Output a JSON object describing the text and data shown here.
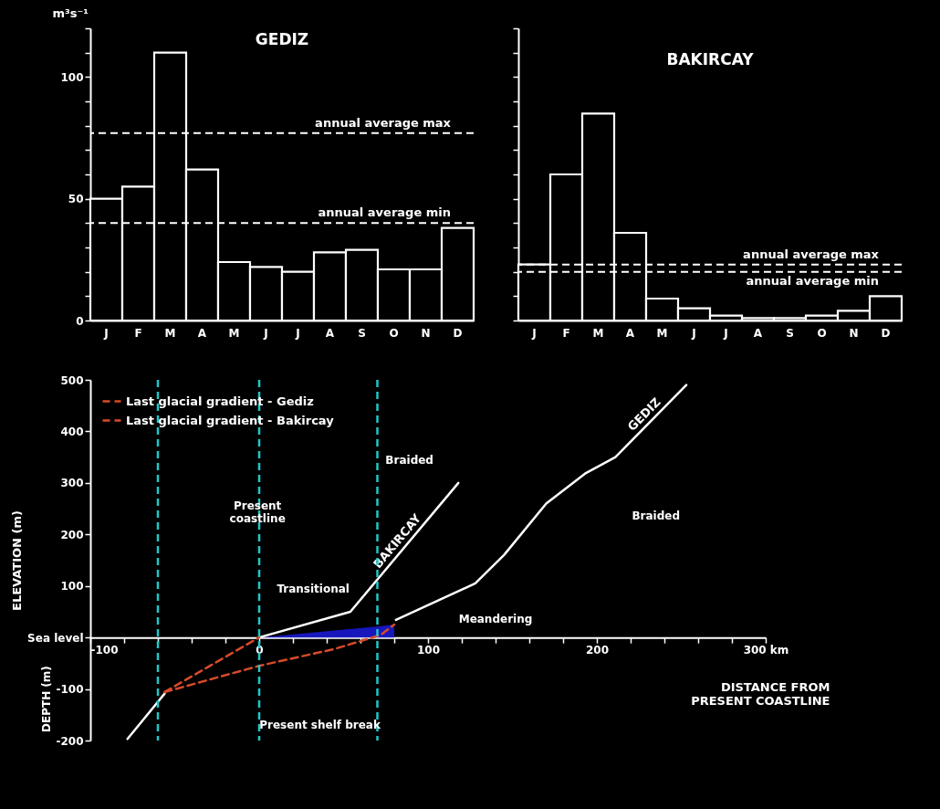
{
  "chart_data": [
    {
      "type": "bar",
      "title": "GEDIZ",
      "ylabel": "m³s⁻¹",
      "color": "#ffffff",
      "categories": [
        "J",
        "F",
        "M",
        "A",
        "M",
        "J",
        "J",
        "A",
        "S",
        "O",
        "N",
        "D"
      ],
      "values": [
        50,
        55,
        110,
        62,
        24,
        22,
        20,
        28,
        29,
        21,
        21,
        38
      ],
      "ylim": [
        0,
        120
      ],
      "yticks": [
        0,
        {
          "value": 10,
          "label": null
        },
        {
          "value": 20,
          "label": null
        },
        {
          "value": 30,
          "label": null
        },
        {
          "value": 40,
          "label": null
        },
        50,
        {
          "value": 60,
          "label": null
        },
        {
          "value": 70,
          "label": null
        },
        {
          "value": 80,
          "label": null
        },
        {
          "value": 90,
          "label": null
        },
        100,
        {
          "value": 110,
          "label": null
        },
        {
          "value": 120,
          "label": null
        }
      ],
      "ref_lines": [
        {
          "axis": "y",
          "value": 77,
          "label": "annual average max",
          "color": "#ffffff",
          "line_style": "dashed"
        },
        {
          "axis": "y",
          "value": 40,
          "label": "annual average min",
          "color": "#ffffff",
          "line_style": "dashed"
        }
      ]
    },
    {
      "type": "bar",
      "title": "BAKIRCAY",
      "color": "#ffffff",
      "tick_labels": "x",
      "categories": [
        "J",
        "F",
        "M",
        "A",
        "M",
        "J",
        "J",
        "A",
        "S",
        "O",
        "N",
        "D"
      ],
      "values": [
        23,
        60,
        85,
        36,
        9,
        5,
        2,
        1,
        1,
        2,
        4,
        10
      ],
      "ylim": [
        0,
        120
      ],
      "yticks": [
        {
          "value": 0,
          "label": null
        },
        {
          "value": 10,
          "label": null
        },
        {
          "value": 20,
          "label": null
        },
        {
          "value": 30,
          "label": null
        },
        {
          "value": 40,
          "label": null
        },
        {
          "value": 50,
          "label": null
        },
        {
          "value": 60,
          "label": null
        },
        {
          "value": 70,
          "label": null
        },
        {
          "value": 80,
          "label": null
        },
        {
          "value": 90,
          "label": null
        },
        {
          "value": 100,
          "label": null
        },
        {
          "value": 110,
          "label": null
        },
        {
          "value": 120,
          "label": null
        }
      ],
      "ref_lines": [
        {
          "axis": "y",
          "value": 23,
          "label": "annual average max",
          "color": "#ffffff",
          "line_style": "dashed"
        },
        {
          "axis": "y",
          "value": 20,
          "label": "annual average min",
          "color": "#ffffff",
          "line_style": "dashed"
        }
      ]
    },
    {
      "type": "line",
      "xlabel": "DISTANCE FROM PRESENT COASTLINE",
      "ylabel": "ELEVATION (m)",
      "legend": "top left",
      "xlim": [
        -100,
        300
      ],
      "xticks": [
        -100,
        {
          "value": -80,
          "label": null
        },
        {
          "value": -60,
          "label": null
        },
        {
          "value": -40,
          "label": null
        },
        {
          "value": -20,
          "label": null
        },
        0,
        {
          "value": 20,
          "label": null
        },
        {
          "value": 40,
          "label": null
        },
        {
          "value": 60,
          "label": null
        },
        {
          "value": 80,
          "label": null
        },
        100,
        {
          "value": 120,
          "label": null
        },
        {
          "value": 140,
          "label": null
        },
        {
          "value": 160,
          "label": null
        },
        {
          "value": 180,
          "label": null
        },
        200,
        {
          "value": 220,
          "label": null
        },
        {
          "value": 240,
          "label": null
        },
        {
          "value": 260,
          "label": null
        },
        {
          "value": 280,
          "label": null
        },
        {
          "value": 300,
          "label": "300 km"
        }
      ],
      "ylim": [
        -200,
        500
      ],
      "yticks": [
        500,
        400,
        300,
        200,
        100,
        {
          "value": 0,
          "label": "Sea level"
        },
        -100,
        -200
      ],
      "series": [
        {
          "type": "area",
          "color": "#1a1ad0",
          "x": [
            0,
            72,
            80
          ],
          "values": [
            0,
            22,
            25
          ]
        },
        {
          "type": "line",
          "color": "#ffffff",
          "x": [
            -78,
            -56
          ],
          "values": [
            -197,
            -109
          ]
        },
        {
          "type": "line",
          "name": "BAKIRCAY",
          "color": "#ffffff",
          "x": [
            0,
            54,
            118
          ],
          "values": [
            0,
            50,
            300
          ]
        },
        {
          "type": "line",
          "name": "GEDIZ",
          "color": "#ffffff",
          "x": [
            81,
            128,
            145,
            170,
            193,
            211,
            253
          ],
          "values": [
            34,
            105,
            160,
            260,
            318,
            350,
            490
          ]
        },
        {
          "type": "line",
          "name": "Last glacial gradient - Gediz",
          "color": "#d84a2a",
          "line_style": "dashed",
          "x": [
            -56,
            0,
            45,
            72,
            80
          ],
          "values": [
            -106,
            -55,
            -22,
            5,
            25
          ]
        },
        {
          "type": "line",
          "name": "Last glacial gradient - Bakircay",
          "color": "#d84a2a",
          "line_style": "dashed",
          "x": [
            -56,
            0
          ],
          "values": [
            -106,
            0
          ]
        }
      ],
      "ref_lines": [
        {
          "axis": "x",
          "value": -60,
          "color": "#20c8c8",
          "line_style": "dashed"
        },
        {
          "axis": "x",
          "value": 0,
          "color": "#20c8c8",
          "line_style": "dashed"
        },
        {
          "axis": "x",
          "value": 70,
          "color": "#20c8c8",
          "line_style": "dashed"
        }
      ],
      "annotations": [
        "Braided",
        "Braided",
        "Present coastline",
        "Transitional",
        "Meandering",
        "Present shelf break",
        "DEPTH (m)"
      ]
    }
  ]
}
